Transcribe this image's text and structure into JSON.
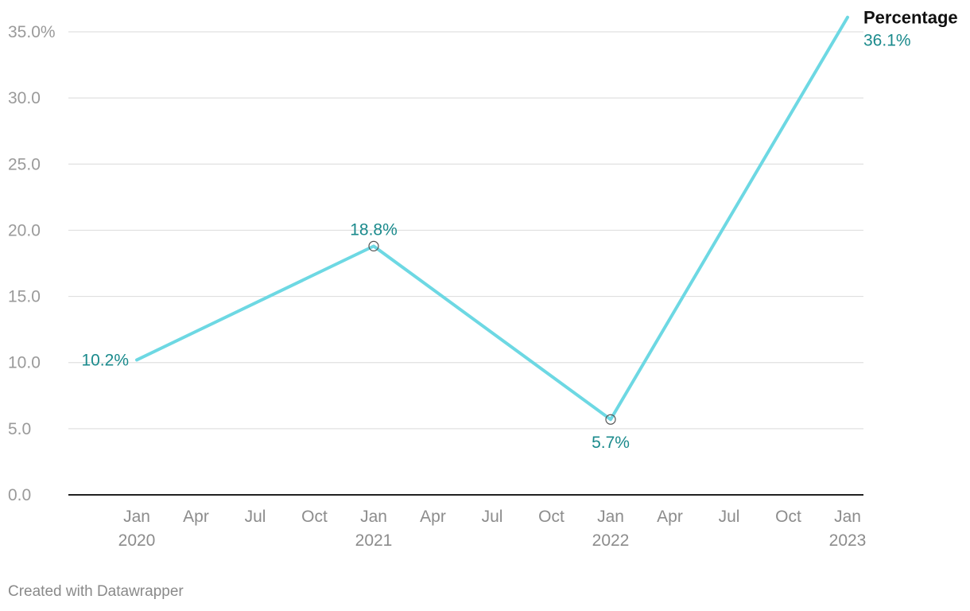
{
  "chart_data": {
    "type": "line",
    "x": [
      "2020-01",
      "2021-01",
      "2022-01",
      "2023-01"
    ],
    "series": [
      {
        "name": "Percentage",
        "values": [
          10.2,
          18.8,
          5.7,
          36.1
        ],
        "labels": [
          "10.2%",
          "18.8%",
          "5.7%",
          "36.1%"
        ]
      }
    ],
    "ylim": [
      0,
      35
    ],
    "y_ticks": [
      0,
      5,
      10,
      15,
      20,
      25,
      30,
      35
    ],
    "y_tick_labels": [
      "0.0",
      "5.0",
      "10.0",
      "15.0",
      "20.0",
      "25.0",
      "30.0",
      "35.0%"
    ],
    "x_ticks": [
      {
        "month": "Jan",
        "year": "2020"
      },
      {
        "month": "Apr",
        "year": ""
      },
      {
        "month": "Jul",
        "year": ""
      },
      {
        "month": "Oct",
        "year": ""
      },
      {
        "month": "Jan",
        "year": "2021"
      },
      {
        "month": "Apr",
        "year": ""
      },
      {
        "month": "Jul",
        "year": ""
      },
      {
        "month": "Oct",
        "year": ""
      },
      {
        "month": "Jan",
        "year": "2022"
      },
      {
        "month": "Apr",
        "year": ""
      },
      {
        "month": "Jul",
        "year": ""
      },
      {
        "month": "Oct",
        "year": ""
      },
      {
        "month": "Jan",
        "year": "2023"
      }
    ],
    "grid": true,
    "legend": "direct label at line end",
    "colors": {
      "line": "#6dd8e3",
      "label": "#1a8a8c",
      "grid": "#e0e0e0",
      "axis": "#222222",
      "marker": "#555555"
    }
  },
  "footer": {
    "credit": "Created with Datawrapper"
  }
}
